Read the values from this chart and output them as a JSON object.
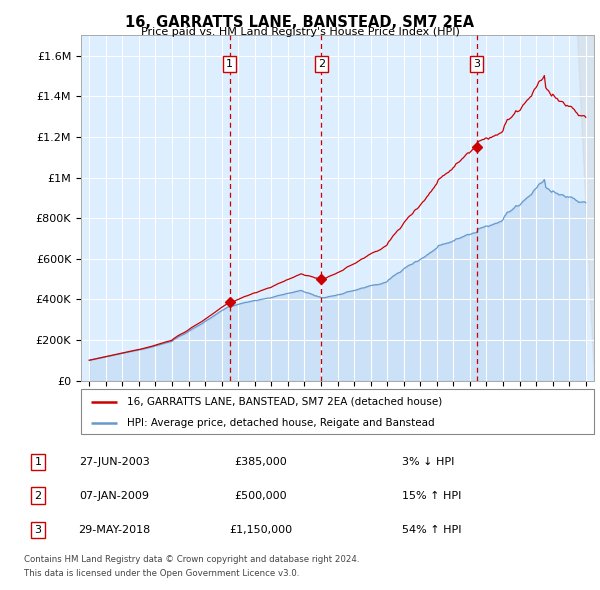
{
  "title": "16, GARRATTS LANE, BANSTEAD, SM7 2EA",
  "subtitle": "Price paid vs. HM Land Registry's House Price Index (HPI)",
  "legend_line1": "16, GARRATTS LANE, BANSTEAD, SM7 2EA (detached house)",
  "legend_line2": "HPI: Average price, detached house, Reigate and Banstead",
  "transactions": [
    {
      "num": 1,
      "date": "27-JUN-2003",
      "price": 385000,
      "pct": "3%",
      "dir": "↓",
      "year": 2003.49
    },
    {
      "num": 2,
      "date": "07-JAN-2009",
      "price": 500000,
      "pct": "15%",
      "dir": "↑",
      "year": 2009.03
    },
    {
      "num": 3,
      "date": "29-MAY-2018",
      "price": 1150000,
      "pct": "54%",
      "dir": "↑",
      "year": 2018.41
    }
  ],
  "footer_line1": "Contains HM Land Registry data © Crown copyright and database right 2024.",
  "footer_line2": "This data is licensed under the Open Government Licence v3.0.",
  "hpi_color": "#6699cc",
  "price_color": "#cc0000",
  "vline_color": "#cc0000",
  "background_color": "#ddeeff",
  "grid_color": "#cccccc",
  "ylim": [
    0,
    1700000
  ],
  "yticks": [
    0,
    200000,
    400000,
    600000,
    800000,
    1000000,
    1200000,
    1400000,
    1600000
  ],
  "xlim_start": 1994.5,
  "xlim_end": 2025.5,
  "xticks": [
    1995,
    1996,
    1997,
    1998,
    1999,
    2000,
    2001,
    2002,
    2003,
    2004,
    2005,
    2006,
    2007,
    2008,
    2009,
    2010,
    2011,
    2012,
    2013,
    2014,
    2015,
    2016,
    2017,
    2018,
    2019,
    2020,
    2021,
    2022,
    2023,
    2024,
    2025
  ]
}
